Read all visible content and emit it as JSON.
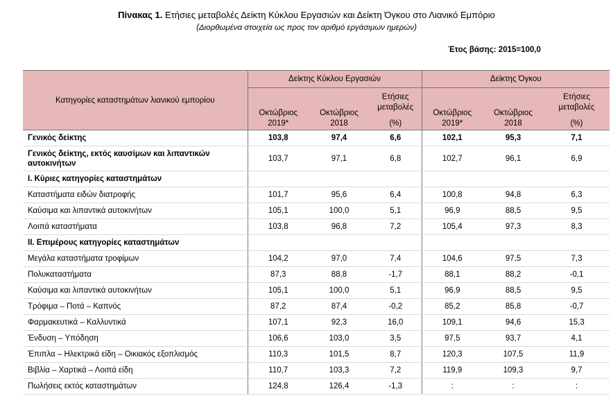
{
  "header": {
    "title_bold": "Πίνακας 1.",
    "title_rest": " Ετήσιες μεταβολές Δείκτη Κύκλου Εργασιών και Δείκτη Όγκου στο Λιανικό Εμπόριο",
    "subtitle": "(Διορθωμένα στοιχεία ως προς τον αριθμό εργάσιμων ημερών)",
    "base_year": "Έτος βάσης: 2015=100,0"
  },
  "table": {
    "category_header": "Κατηγορίες καταστημάτων λιανικού εμπορίου",
    "group_turnover": "Δείκτης Κύκλου Εργασιών",
    "group_volume": "Δείκτης Όγκου",
    "col_month_1": "Οκτώβριος",
    "col_year_1": "2019*",
    "col_month_2": "Οκτώβριος",
    "col_year_2": "2018",
    "col_change_1": "Ετήσιες",
    "col_change_2": "μεταβολές",
    "col_change_3": "(%)",
    "rows": [
      {
        "label": "Γενικός δείκτης",
        "v": [
          "103,8",
          "97,4",
          "6,6",
          "102,1",
          "95,3",
          "7,1"
        ],
        "bold": true
      },
      {
        "label": "Γενικός δείκτης, εκτός καυσίμων και λιπαντικών αυτοκινήτων",
        "v": [
          "103,7",
          "97,1",
          "6,8",
          "102,7",
          "96,1",
          "6,9"
        ],
        "bold": "label"
      },
      {
        "label": "Ι. Κύριες κατηγορίες καταστημάτων",
        "v": [
          "",
          "",
          "",
          "",
          "",
          ""
        ],
        "bold": true
      },
      {
        "label": "Καταστήματα ειδών διατροφής",
        "v": [
          "101,7",
          "95,6",
          "6,4",
          "100,8",
          "94,8",
          "6,3"
        ]
      },
      {
        "label": "Καύσιμα και λιπαντικά αυτοκινήτων",
        "v": [
          "105,1",
          "100,0",
          "5,1",
          "96,9",
          "88,5",
          "9,5"
        ]
      },
      {
        "label": "Λοιπά καταστήματα",
        "v": [
          "103,8",
          "96,8",
          "7,2",
          "105,4",
          "97,3",
          "8,3"
        ]
      },
      {
        "label": "ΙΙ. Επιμέρους κατηγορίες καταστημάτων",
        "v": [
          "",
          "",
          "",
          "",
          "",
          ""
        ],
        "bold": true
      },
      {
        "label": "Μεγάλα καταστήματα τροφίμων",
        "v": [
          "104,2",
          "97,0",
          "7,4",
          "104,6",
          "97,5",
          "7,3"
        ]
      },
      {
        "label": "Πολυκαταστήματα",
        "v": [
          "87,3",
          "88,8",
          "-1,7",
          "88,1",
          "88,2",
          "-0,1"
        ]
      },
      {
        "label": "Καύσιμα και λιπαντικά αυτοκινήτων",
        "v": [
          "105,1",
          "100,0",
          "5,1",
          "96,9",
          "88,5",
          "9,5"
        ]
      },
      {
        "label": "Τρόφιμα – Ποτά – Καπνός",
        "v": [
          "87,2",
          "87,4",
          "-0,2",
          "85,2",
          "85,8",
          "-0,7"
        ]
      },
      {
        "label": "Φαρμακευτικά – Καλλυντικά",
        "v": [
          "107,1",
          "92,3",
          "16,0",
          "109,1",
          "94,6",
          "15,3"
        ]
      },
      {
        "label": "Ένδυση – Υπόδηση",
        "v": [
          "106,6",
          "103,0",
          "3,5",
          "97,5",
          "93,7",
          "4,1"
        ]
      },
      {
        "label": "Έπιπλα – Ηλεκτρικά είδη – Οικιακός εξοπλισμός",
        "v": [
          "110,3",
          "101,5",
          "8,7",
          "120,3",
          "107,5",
          "11,9"
        ]
      },
      {
        "label": "Βιβλία – Χαρτικά – Λοιπά είδη",
        "v": [
          "110,7",
          "103,3",
          "7,2",
          "119,9",
          "109,3",
          "9,7"
        ]
      },
      {
        "label": "Πωλήσεις εκτός καταστημάτων",
        "v": [
          "124,8",
          "126,4",
          "-1,3",
          ":",
          ":",
          ":"
        ]
      }
    ]
  }
}
